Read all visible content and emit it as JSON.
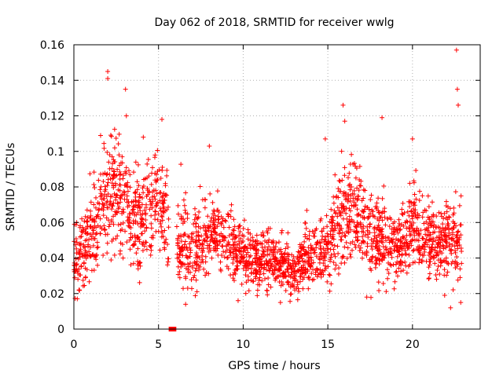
{
  "chart_data": {
    "type": "scatter",
    "title": "Day 062 of 2018, SRMTID for receiver wwlg",
    "xlabel": "GPS time / hours",
    "ylabel": "SRMTID / TECUs",
    "xlim": [
      0,
      24
    ],
    "ylim": [
      0,
      0.16
    ],
    "x_ticks": [
      0,
      5,
      10,
      15,
      20
    ],
    "x_tick_labels": [
      "0",
      "5",
      "10",
      "15",
      "20"
    ],
    "y_ticks": [
      0,
      0.02,
      0.04,
      0.06,
      0.08,
      0.1,
      0.12,
      0.14,
      0.16
    ],
    "y_tick_labels": [
      "0",
      "0.02",
      "0.04",
      "0.06",
      "0.08",
      "0.1",
      "0.12",
      "0.14",
      "0.16"
    ],
    "grid": true,
    "marker": "+",
    "color": "#ff0000",
    "gap_marker": {
      "x_start": 5.6,
      "x_end": 6.05,
      "y": 0
    },
    "series_profile": {
      "description_points": [
        [
          0.0,
          0.04
        ],
        [
          0.5,
          0.045
        ],
        [
          1.0,
          0.05
        ],
        [
          1.5,
          0.062
        ],
        [
          2.0,
          0.08
        ],
        [
          2.5,
          0.075
        ],
        [
          3.0,
          0.078
        ],
        [
          3.5,
          0.06
        ],
        [
          4.0,
          0.062
        ],
        [
          4.5,
          0.07
        ],
        [
          5.0,
          0.072
        ],
        [
          5.5,
          0.06
        ],
        [
          6.0,
          0.05
        ],
        [
          6.5,
          0.045
        ],
        [
          7.0,
          0.044
        ],
        [
          7.5,
          0.048
        ],
        [
          8.0,
          0.055
        ],
        [
          8.5,
          0.055
        ],
        [
          9.0,
          0.05
        ],
        [
          9.5,
          0.045
        ],
        [
          10.0,
          0.042
        ],
        [
          10.5,
          0.04
        ],
        [
          11.0,
          0.04
        ],
        [
          11.5,
          0.04
        ],
        [
          12.0,
          0.038
        ],
        [
          12.5,
          0.036
        ],
        [
          13.0,
          0.032
        ],
        [
          13.5,
          0.038
        ],
        [
          14.0,
          0.04
        ],
        [
          14.5,
          0.042
        ],
        [
          15.0,
          0.045
        ],
        [
          15.5,
          0.06
        ],
        [
          16.0,
          0.065
        ],
        [
          16.5,
          0.07
        ],
        [
          17.0,
          0.062
        ],
        [
          17.5,
          0.052
        ],
        [
          18.0,
          0.05
        ],
        [
          18.5,
          0.048
        ],
        [
          19.0,
          0.045
        ],
        [
          19.5,
          0.048
        ],
        [
          20.0,
          0.06
        ],
        [
          20.5,
          0.055
        ],
        [
          21.0,
          0.05
        ],
        [
          21.5,
          0.045
        ],
        [
          22.0,
          0.05
        ],
        [
          22.5,
          0.055
        ],
        [
          22.8,
          0.045
        ]
      ],
      "spread": [
        [
          0.0,
          0.012
        ],
        [
          2.0,
          0.022
        ],
        [
          3.0,
          0.02
        ],
        [
          5.0,
          0.02
        ],
        [
          6.0,
          0.015
        ],
        [
          8.0,
          0.014
        ],
        [
          10.0,
          0.012
        ],
        [
          12.0,
          0.011
        ],
        [
          13.0,
          0.01
        ],
        [
          15.0,
          0.013
        ],
        [
          16.0,
          0.018
        ],
        [
          17.0,
          0.016
        ],
        [
          19.0,
          0.013
        ],
        [
          20.0,
          0.016
        ],
        [
          22.0,
          0.013
        ],
        [
          22.8,
          0.015
        ]
      ],
      "outliers": [
        [
          2.0,
          0.145
        ],
        [
          2.0,
          0.141
        ],
        [
          3.05,
          0.135
        ],
        [
          3.1,
          0.12
        ],
        [
          5.2,
          0.118
        ],
        [
          15.9,
          0.126
        ],
        [
          16.0,
          0.117
        ],
        [
          18.2,
          0.119
        ],
        [
          22.6,
          0.157
        ],
        [
          22.65,
          0.135
        ],
        [
          22.7,
          0.126
        ],
        [
          8.0,
          0.103
        ],
        [
          14.85,
          0.107
        ],
        [
          20.0,
          0.107
        ],
        [
          4.1,
          0.108
        ],
        [
          0.2,
          0.017
        ],
        [
          0.3,
          0.022
        ],
        [
          6.6,
          0.014
        ],
        [
          9.7,
          0.016
        ],
        [
          12.2,
          0.015
        ],
        [
          17.3,
          0.018
        ],
        [
          22.25,
          0.012
        ],
        [
          22.85,
          0.015
        ],
        [
          21.9,
          0.019
        ]
      ],
      "x_range": [
        0.0,
        22.9
      ],
      "approx_point_count": 2400
    }
  }
}
